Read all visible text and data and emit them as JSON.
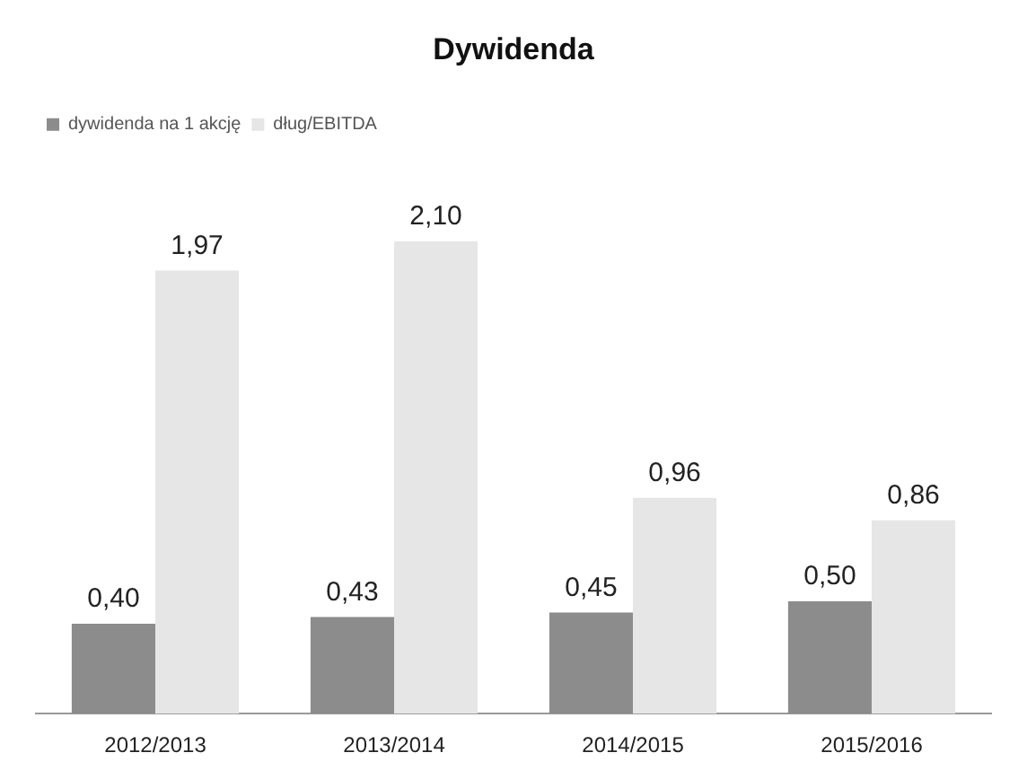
{
  "chart_data": {
    "type": "bar",
    "title": "Dywidenda",
    "categories": [
      "2012/2013",
      "2013/2014",
      "2014/2015",
      "2015/2016"
    ],
    "series": [
      {
        "name": "dywidenda na 1 akcję",
        "color": "#8c8c8c",
        "values": [
          0.4,
          0.43,
          0.45,
          0.5
        ],
        "value_labels": [
          "0,40",
          "0,43",
          "0,45",
          "0,50"
        ]
      },
      {
        "name": "dług/EBITDA",
        "color": "#e6e6e6",
        "values": [
          1.97,
          2.1,
          0.96,
          0.86
        ],
        "value_labels": [
          "1,97",
          "2,10",
          "0,96",
          "0,86"
        ]
      }
    ],
    "legend": "top left",
    "tick_labels": "x",
    "grid": false
  }
}
